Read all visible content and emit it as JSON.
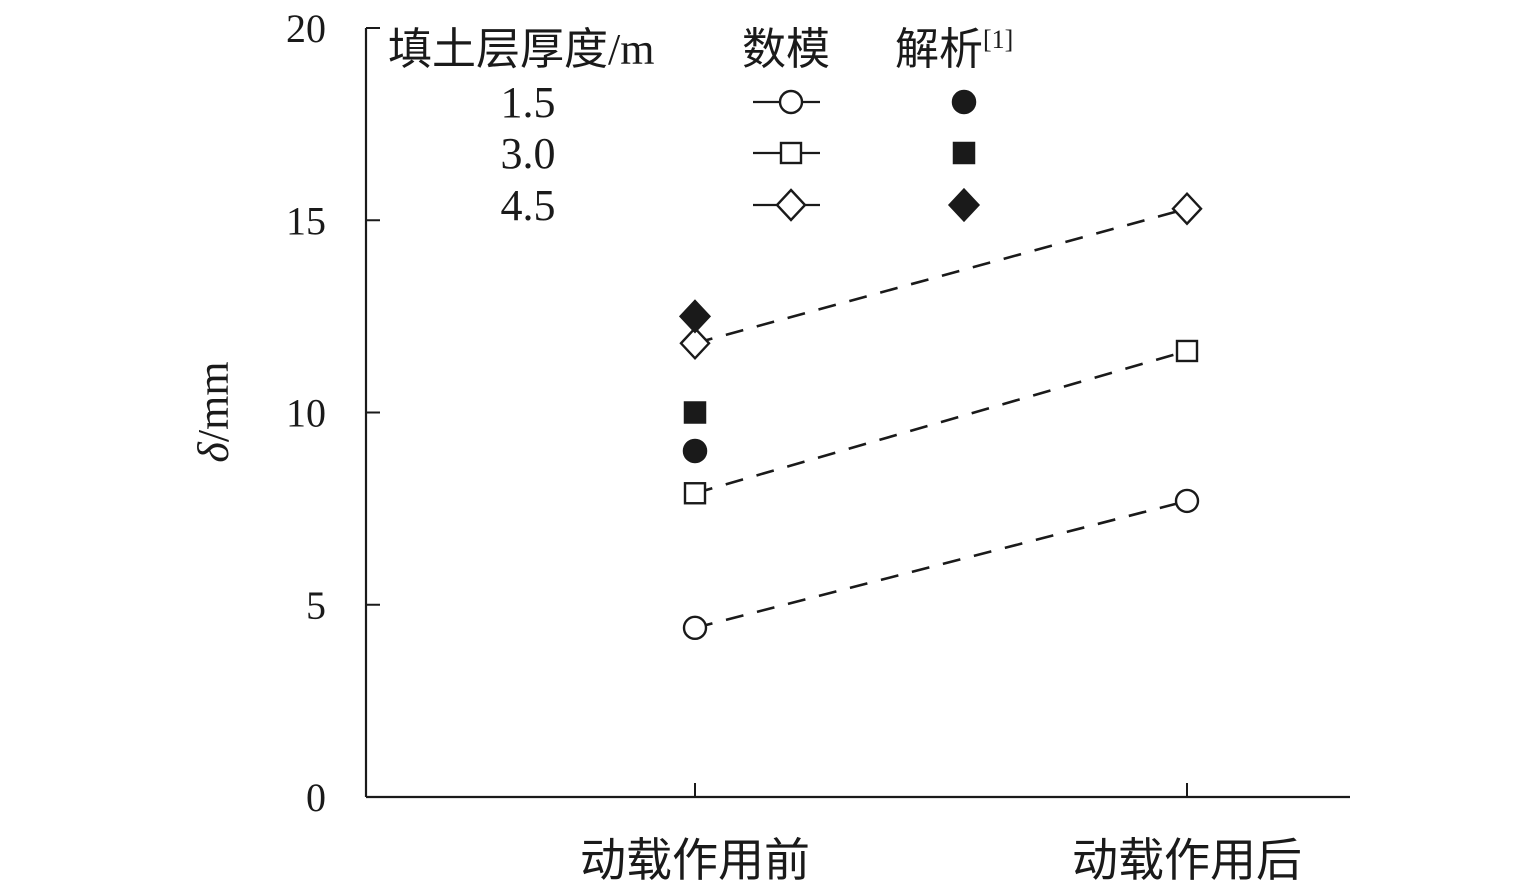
{
  "chart_data": {
    "type": "scatter",
    "title": "",
    "xlabel": "",
    "ylabel_symbol": "δ",
    "ylabel_unit": "/mm",
    "categories": [
      "动载作用前",
      "动载作用后"
    ],
    "ylim": [
      0,
      20
    ],
    "yticks": [
      "0",
      "5",
      "10",
      "15",
      "20"
    ],
    "grid": false,
    "legend": {
      "placement": "top-left",
      "header_thickness": "填土层厚度/m",
      "header_numerical": "数模",
      "header_analytical": "解析",
      "header_analytical_ref": "[1]",
      "rows": [
        "1.5",
        "3.0",
        "4.5"
      ]
    },
    "numerical_series": [
      {
        "thickness": "1.5",
        "marker": "circle",
        "values": [
          4.4,
          7.7
        ]
      },
      {
        "thickness": "3.0",
        "marker": "square",
        "values": [
          7.9,
          11.6
        ]
      },
      {
        "thickness": "4.5",
        "marker": "diamond",
        "values": [
          11.8,
          15.3
        ]
      }
    ],
    "analytical_series": [
      {
        "thickness": "1.5",
        "marker": "circle",
        "values": [
          9.0
        ]
      },
      {
        "thickness": "3.0",
        "marker": "square",
        "values": [
          10.0
        ]
      },
      {
        "thickness": "4.5",
        "marker": "diamond",
        "values": [
          12.5
        ]
      }
    ]
  }
}
